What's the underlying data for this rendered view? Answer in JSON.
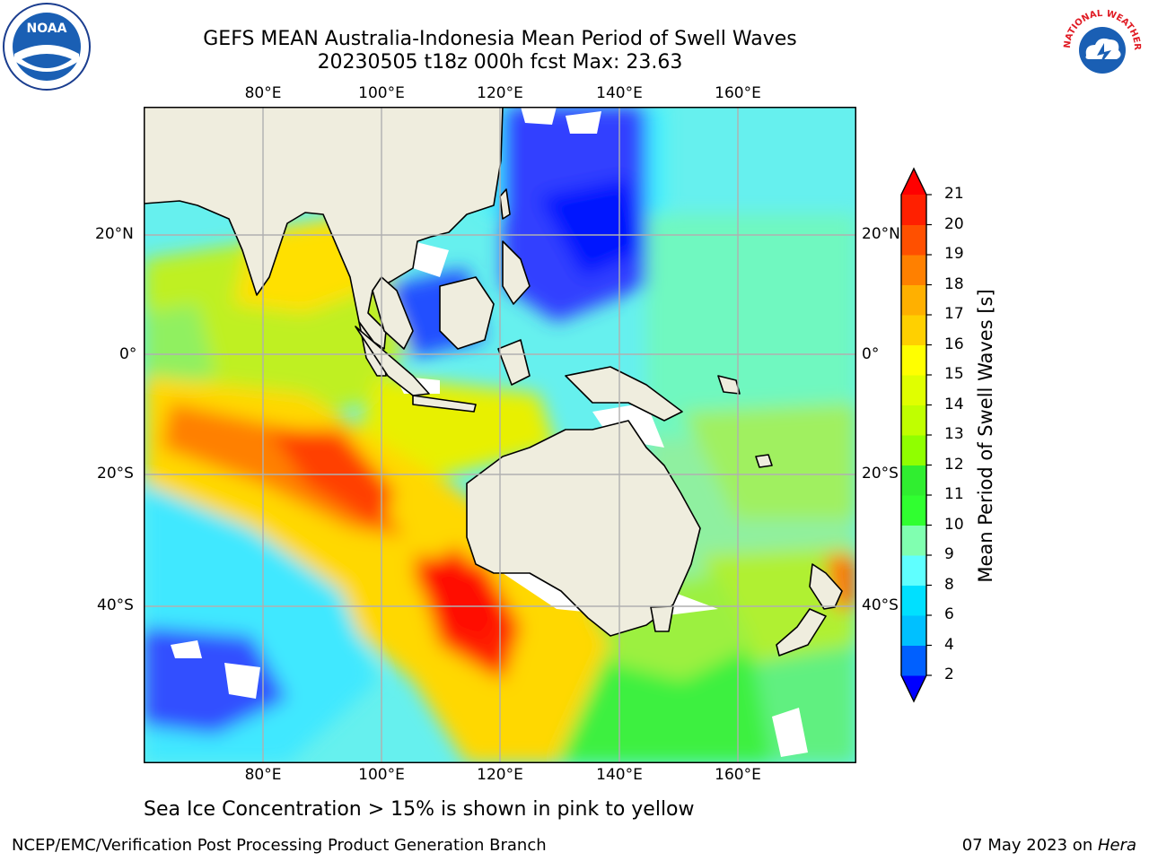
{
  "header": {
    "title_line1": "GEFS MEAN Australia-Indonesia Mean Period of Swell Waves",
    "title_line2": "20230505 t18z 000h fcst   Max: 23.63"
  },
  "logos": {
    "noaa_text": "NOAA",
    "nws_text": "NATIONAL WEATHER SERVICE"
  },
  "map": {
    "lon_labels": [
      "80°E",
      "100°E",
      "120°E",
      "140°E",
      "160°E"
    ],
    "lat_labels": [
      "20°N",
      "0°",
      "20°S",
      "40°S"
    ],
    "grid": true,
    "land_color": "#efedde",
    "grid_color": "#b0b0b0"
  },
  "colorbar": {
    "label": "Mean Period of Swell Waves [s]",
    "ticks": [
      "21",
      "20",
      "19",
      "18",
      "17",
      "16",
      "15",
      "14",
      "13",
      "12",
      "11",
      "10",
      "9",
      "8",
      "6",
      "4",
      "2"
    ],
    "colors": [
      "#0000ff",
      "#0060ff",
      "#00c0ff",
      "#00e0ff",
      "#5fffff",
      "#80ffb0",
      "#30ff30",
      "#30ee30",
      "#90ff00",
      "#c0ff00",
      "#e0ff00",
      "#ffff00",
      "#ffd000",
      "#ffb000",
      "#ff8000",
      "#ff5000",
      "#ff2000",
      "#ff0000"
    ]
  },
  "footer": {
    "note": "Sea Ice Concentration > 15% is shown in pink to yellow",
    "left": "NCEP/EMC/Verification Post Processing Product Generation Branch",
    "right_prefix": "07 May 2023 on ",
    "right_machine": "Hera"
  }
}
